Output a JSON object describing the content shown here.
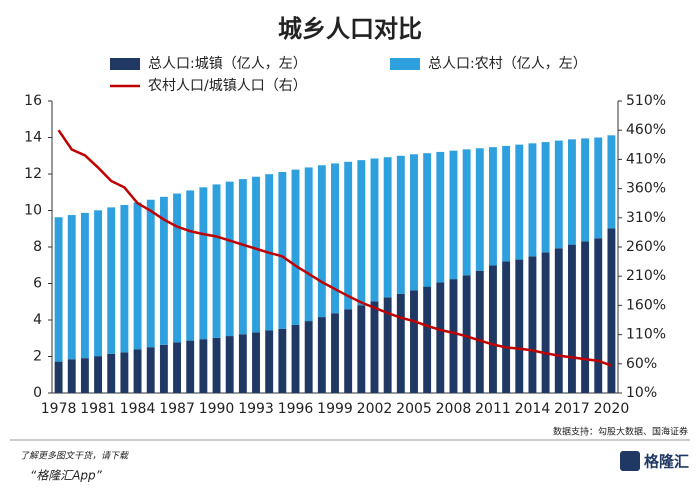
{
  "chart_data": {
    "type": "bar",
    "title": "城乡人口对比",
    "categories": [
      "1978",
      null,
      null,
      "1981",
      null,
      null,
      "1984",
      null,
      null,
      "1987",
      null,
      null,
      "1990",
      null,
      null,
      "1993",
      null,
      null,
      "1996",
      null,
      null,
      "1999",
      null,
      null,
      "2002",
      null,
      null,
      "2005",
      null,
      null,
      "2008",
      null,
      null,
      "2011",
      null,
      null,
      "2014",
      null,
      null,
      "2017",
      null,
      null,
      "2020"
    ],
    "series": [
      {
        "name": "总人口:城镇（亿人，左）",
        "type": "bar",
        "color": "#1f3864",
        "values": [
          1.72,
          1.85,
          1.91,
          2.02,
          2.15,
          2.23,
          2.4,
          2.51,
          2.64,
          2.77,
          2.87,
          2.95,
          3.02,
          3.12,
          3.22,
          3.32,
          3.43,
          3.52,
          3.73,
          3.94,
          4.16,
          4.37,
          4.59,
          4.81,
          5.02,
          5.24,
          5.43,
          5.62,
          5.83,
          6.06,
          6.24,
          6.45,
          6.7,
          6.99,
          7.21,
          7.31,
          7.49,
          7.71,
          7.93,
          8.13,
          8.31,
          8.48,
          9.02
        ]
      },
      {
        "name": "总人口:农村（亿人，左）",
        "type": "bar",
        "color": "#2ea0dd",
        "values": [
          7.91,
          7.9,
          7.96,
          7.99,
          8.02,
          8.07,
          8.04,
          8.08,
          8.11,
          8.16,
          8.23,
          8.32,
          8.41,
          8.46,
          8.5,
          8.53,
          8.56,
          8.59,
          8.51,
          8.42,
          8.32,
          8.21,
          8.08,
          7.95,
          7.83,
          7.68,
          7.57,
          7.46,
          7.31,
          7.15,
          7.04,
          6.9,
          6.71,
          6.48,
          6.33,
          6.3,
          6.19,
          6.04,
          5.9,
          5.77,
          5.64,
          5.52,
          5.1
        ]
      },
      {
        "name": "农村人口/城镇人口（右）",
        "type": "line",
        "axis": "y2",
        "color": "#c00000",
        "values": [
          460,
          427,
          417,
          396,
          373,
          362,
          335,
          322,
          307,
          295,
          287,
          282,
          278,
          271,
          264,
          257,
          250,
          244,
          228,
          214,
          200,
          188,
          176,
          165,
          156,
          147,
          139,
          133,
          125,
          118,
          113,
          107,
          100,
          93,
          88,
          86,
          83,
          78,
          74,
          71,
          68,
          65,
          57
        ]
      }
    ],
    "ylim": [
      0,
      16
    ],
    "yticks": [
      0,
      2,
      4,
      6,
      8,
      10,
      12,
      14,
      16
    ],
    "y2lim": [
      10,
      510
    ],
    "y2ticks": [
      {
        "value": 10,
        "label": "10%"
      },
      {
        "value": 60,
        "label": "60%"
      },
      {
        "value": 110,
        "label": "110%"
      },
      {
        "value": 160,
        "label": "160%"
      },
      {
        "value": 210,
        "label": "210%"
      },
      {
        "value": 260,
        "label": "260%"
      },
      {
        "value": 310,
        "label": "310%"
      },
      {
        "value": 360,
        "label": "360%"
      },
      {
        "value": 410,
        "label": "410%"
      },
      {
        "value": 460,
        "label": "460%"
      },
      {
        "value": 510,
        "label": "510%"
      }
    ],
    "source": "数据支持：勾股大数据、国海证券"
  },
  "footer": {
    "line1": "了解更多图文干货，请下载",
    "line2": "“格隆汇App”",
    "logo": "格隆汇"
  }
}
